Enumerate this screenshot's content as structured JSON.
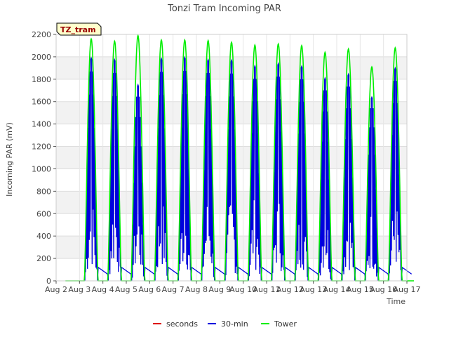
{
  "chart_data": {
    "type": "line",
    "title": "Tonzi Tram Incoming PAR",
    "xlabel": "Time",
    "ylabel": "Incoming PAR (mV)",
    "xlim": [
      "2023-08-02",
      "2023-08-17"
    ],
    "ylim": [
      0,
      2200
    ],
    "x_tick_labels": [
      "Aug 2",
      "Aug 3",
      "Aug 4",
      "Aug 5",
      "Aug 6",
      "Aug 7",
      "Aug 8",
      "Aug 9",
      "Aug 10",
      "Aug 11",
      "Aug 12",
      "Aug 13",
      "Aug 14",
      "Aug 15",
      "Aug 16",
      "Aug 17"
    ],
    "y_ticks": [
      0,
      200,
      400,
      600,
      800,
      1000,
      1200,
      1400,
      1600,
      1800,
      2000,
      2200
    ],
    "grid": true,
    "legend_position": "bottom",
    "annotation": "TZ_tram",
    "days": [
      "Aug 3",
      "Aug 4",
      "Aug 5",
      "Aug 6",
      "Aug 7",
      "Aug 8",
      "Aug 9",
      "Aug 10",
      "Aug 11",
      "Aug 12",
      "Aug 13",
      "Aug 14",
      "Aug 15",
      "Aug 16"
    ],
    "series": [
      {
        "name": "seconds",
        "color": "#dd0000",
        "daily_peaks": []
      },
      {
        "name": "30-min",
        "color": "#0000dd",
        "daily_peaks": [
          1990,
          1975,
          1750,
          1985,
          1995,
          1975,
          1970,
          1920,
          1940,
          1915,
          1810,
          1845,
          1640,
          1900
        ]
      },
      {
        "name": "Tower",
        "color": "#00ee00",
        "daily_peaks": [
          2160,
          2140,
          2190,
          2150,
          2150,
          2145,
          2130,
          2105,
          2115,
          2100,
          2040,
          2070,
          1910,
          2080
        ]
      }
    ]
  }
}
